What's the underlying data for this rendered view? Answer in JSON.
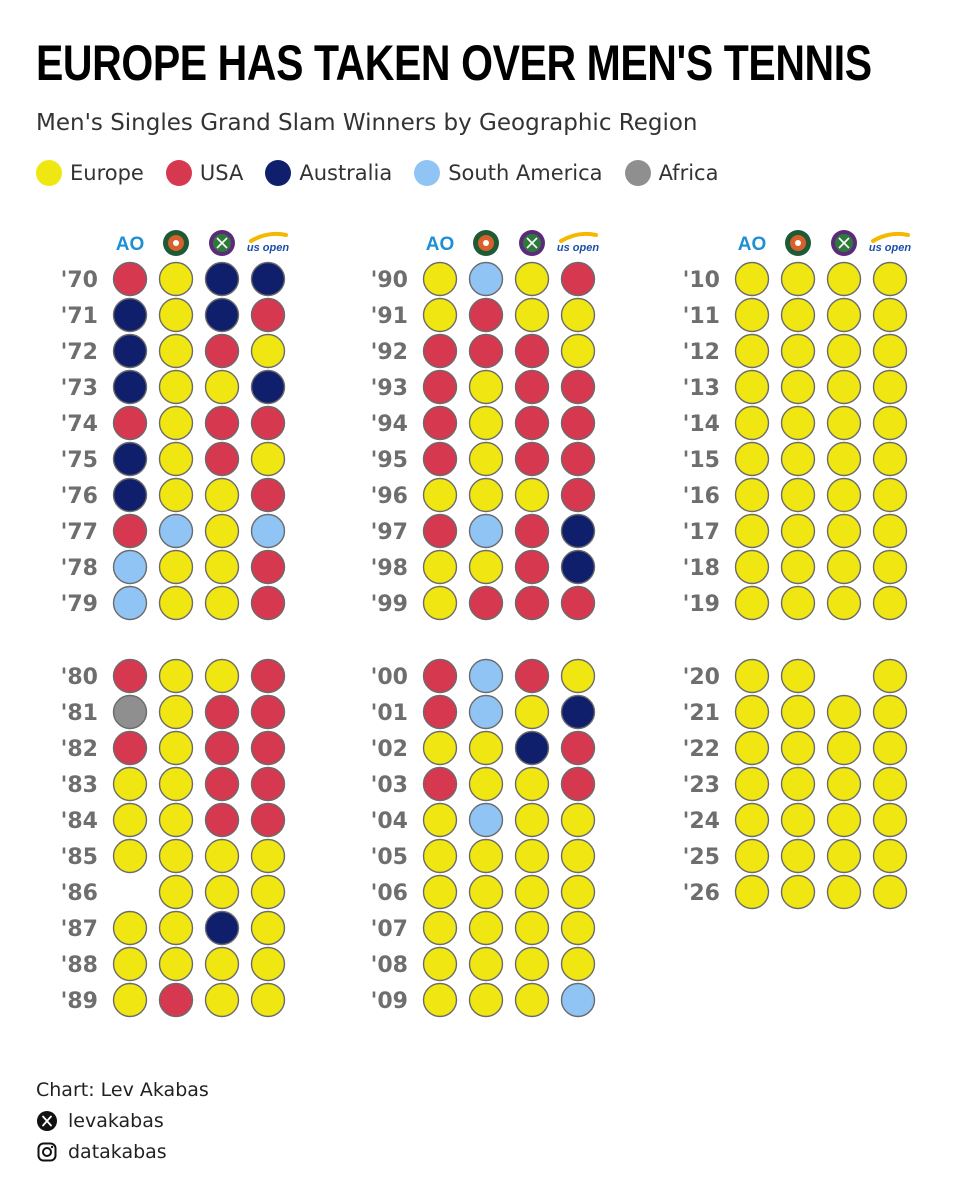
{
  "header": {
    "title": "EUROPE HAS TAKEN OVER MEN'S TENNIS",
    "subtitle": "Men's Singles Grand Slam Winners by Geographic Region"
  },
  "legend": [
    {
      "label": "Europe",
      "color": "#f0e612"
    },
    {
      "label": "USA",
      "color": "#d6384f"
    },
    {
      "label": "Australia",
      "color": "#0f1f6b"
    },
    {
      "label": "South America",
      "color": "#90c4f5"
    },
    {
      "label": "Africa",
      "color": "#8f8f8f"
    }
  ],
  "tournament_icons": [
    {
      "name": "australian-open-logo-icon",
      "text": "AO"
    },
    {
      "name": "roland-garros-logo-icon"
    },
    {
      "name": "wimbledon-logo-icon"
    },
    {
      "name": "us-open-logo-icon",
      "text": "us open"
    }
  ],
  "chart_data": {
    "type": "dot-matrix",
    "title": "EUROPE HAS TAKEN OVER MEN'S TENNIS",
    "subtitle": "Men's Singles Grand Slam Winners by Geographic Region",
    "columns": [
      "Australian Open",
      "French Open",
      "Wimbledon",
      "US Open"
    ],
    "region_codes": {
      "E": "Europe",
      "U": "USA",
      "A": "Australia",
      "S": "South America",
      "F": "Africa",
      "": "none"
    },
    "region_colors": {
      "E": "#f0e612",
      "U": "#d6384f",
      "A": "#0f1f6b",
      "S": "#90c4f5",
      "F": "#8f8f8f"
    },
    "panels": [
      {
        "rows": [
          {
            "year": "'70",
            "winners": [
              "U",
              "E",
              "A",
              "A"
            ]
          },
          {
            "year": "'71",
            "winners": [
              "A",
              "E",
              "A",
              "U"
            ]
          },
          {
            "year": "'72",
            "winners": [
              "A",
              "E",
              "U",
              "E"
            ]
          },
          {
            "year": "'73",
            "winners": [
              "A",
              "E",
              "E",
              "A"
            ]
          },
          {
            "year": "'74",
            "winners": [
              "U",
              "E",
              "U",
              "U"
            ]
          },
          {
            "year": "'75",
            "winners": [
              "A",
              "E",
              "U",
              "E"
            ]
          },
          {
            "year": "'76",
            "winners": [
              "A",
              "E",
              "E",
              "U"
            ]
          },
          {
            "year": "'77",
            "winners": [
              "U",
              "S",
              "E",
              "S"
            ]
          },
          {
            "year": "'78",
            "winners": [
              "S",
              "E",
              "E",
              "U"
            ]
          },
          {
            "year": "'79",
            "winners": [
              "S",
              "E",
              "E",
              "U"
            ]
          }
        ]
      },
      {
        "rows": [
          {
            "year": "'90",
            "winners": [
              "E",
              "S",
              "E",
              "U"
            ]
          },
          {
            "year": "'91",
            "winners": [
              "E",
              "U",
              "E",
              "E"
            ]
          },
          {
            "year": "'92",
            "winners": [
              "U",
              "U",
              "U",
              "E"
            ]
          },
          {
            "year": "'93",
            "winners": [
              "U",
              "E",
              "U",
              "U"
            ]
          },
          {
            "year": "'94",
            "winners": [
              "U",
              "E",
              "U",
              "U"
            ]
          },
          {
            "year": "'95",
            "winners": [
              "U",
              "E",
              "U",
              "U"
            ]
          },
          {
            "year": "'96",
            "winners": [
              "E",
              "E",
              "E",
              "U"
            ]
          },
          {
            "year": "'97",
            "winners": [
              "U",
              "S",
              "U",
              "A"
            ]
          },
          {
            "year": "'98",
            "winners": [
              "E",
              "E",
              "U",
              "A"
            ]
          },
          {
            "year": "'99",
            "winners": [
              "E",
              "U",
              "U",
              "U"
            ]
          }
        ]
      },
      {
        "rows": [
          {
            "year": "'10",
            "winners": [
              "E",
              "E",
              "E",
              "E"
            ]
          },
          {
            "year": "'11",
            "winners": [
              "E",
              "E",
              "E",
              "E"
            ]
          },
          {
            "year": "'12",
            "winners": [
              "E",
              "E",
              "E",
              "E"
            ]
          },
          {
            "year": "'13",
            "winners": [
              "E",
              "E",
              "E",
              "E"
            ]
          },
          {
            "year": "'14",
            "winners": [
              "E",
              "E",
              "E",
              "E"
            ]
          },
          {
            "year": "'15",
            "winners": [
              "E",
              "E",
              "E",
              "E"
            ]
          },
          {
            "year": "'16",
            "winners": [
              "E",
              "E",
              "E",
              "E"
            ]
          },
          {
            "year": "'17",
            "winners": [
              "E",
              "E",
              "E",
              "E"
            ]
          },
          {
            "year": "'18",
            "winners": [
              "E",
              "E",
              "E",
              "E"
            ]
          },
          {
            "year": "'19",
            "winners": [
              "E",
              "E",
              "E",
              "E"
            ]
          }
        ]
      },
      {
        "rows": [
          {
            "year": "'80",
            "winners": [
              "U",
              "E",
              "E",
              "U"
            ]
          },
          {
            "year": "'81",
            "winners": [
              "F",
              "E",
              "U",
              "U"
            ]
          },
          {
            "year": "'82",
            "winners": [
              "U",
              "E",
              "U",
              "U"
            ]
          },
          {
            "year": "'83",
            "winners": [
              "E",
              "E",
              "U",
              "U"
            ]
          },
          {
            "year": "'84",
            "winners": [
              "E",
              "E",
              "U",
              "U"
            ]
          },
          {
            "year": "'85",
            "winners": [
              "E",
              "E",
              "E",
              "E"
            ]
          },
          {
            "year": "'86",
            "winners": [
              "",
              "E",
              "E",
              "E"
            ]
          },
          {
            "year": "'87",
            "winners": [
              "E",
              "E",
              "A",
              "E"
            ]
          },
          {
            "year": "'88",
            "winners": [
              "E",
              "E",
              "E",
              "E"
            ]
          },
          {
            "year": "'89",
            "winners": [
              "E",
              "U",
              "E",
              "E"
            ]
          }
        ]
      },
      {
        "rows": [
          {
            "year": "'00",
            "winners": [
              "U",
              "S",
              "U",
              "E"
            ]
          },
          {
            "year": "'01",
            "winners": [
              "U",
              "S",
              "E",
              "A"
            ]
          },
          {
            "year": "'02",
            "winners": [
              "E",
              "E",
              "A",
              "U"
            ]
          },
          {
            "year": "'03",
            "winners": [
              "U",
              "E",
              "E",
              "U"
            ]
          },
          {
            "year": "'04",
            "winners": [
              "E",
              "S",
              "E",
              "E"
            ]
          },
          {
            "year": "'05",
            "winners": [
              "E",
              "E",
              "E",
              "E"
            ]
          },
          {
            "year": "'06",
            "winners": [
              "E",
              "E",
              "E",
              "E"
            ]
          },
          {
            "year": "'07",
            "winners": [
              "E",
              "E",
              "E",
              "E"
            ]
          },
          {
            "year": "'08",
            "winners": [
              "E",
              "E",
              "E",
              "E"
            ]
          },
          {
            "year": "'09",
            "winners": [
              "E",
              "E",
              "E",
              "S"
            ]
          }
        ]
      },
      {
        "rows": [
          {
            "year": "'20",
            "winners": [
              "E",
              "E",
              "",
              "E"
            ]
          },
          {
            "year": "'21",
            "winners": [
              "E",
              "E",
              "E",
              "E"
            ]
          },
          {
            "year": "'22",
            "winners": [
              "E",
              "E",
              "E",
              "E"
            ]
          },
          {
            "year": "'23",
            "winners": [
              "E",
              "E",
              "E",
              "E"
            ]
          },
          {
            "year": "'24",
            "winners": [
              "E",
              "E",
              "E",
              "E"
            ]
          },
          {
            "year": "'25",
            "winners": [
              "E",
              "E",
              "E",
              "E"
            ]
          },
          {
            "year": "'26",
            "winners": [
              "E",
              "E",
              "E",
              "E"
            ]
          }
        ]
      }
    ]
  },
  "credits": {
    "chart_by": "Chart: Lev Akabas",
    "x_handle": "levakabas",
    "instagram_handle": "datakabas"
  }
}
